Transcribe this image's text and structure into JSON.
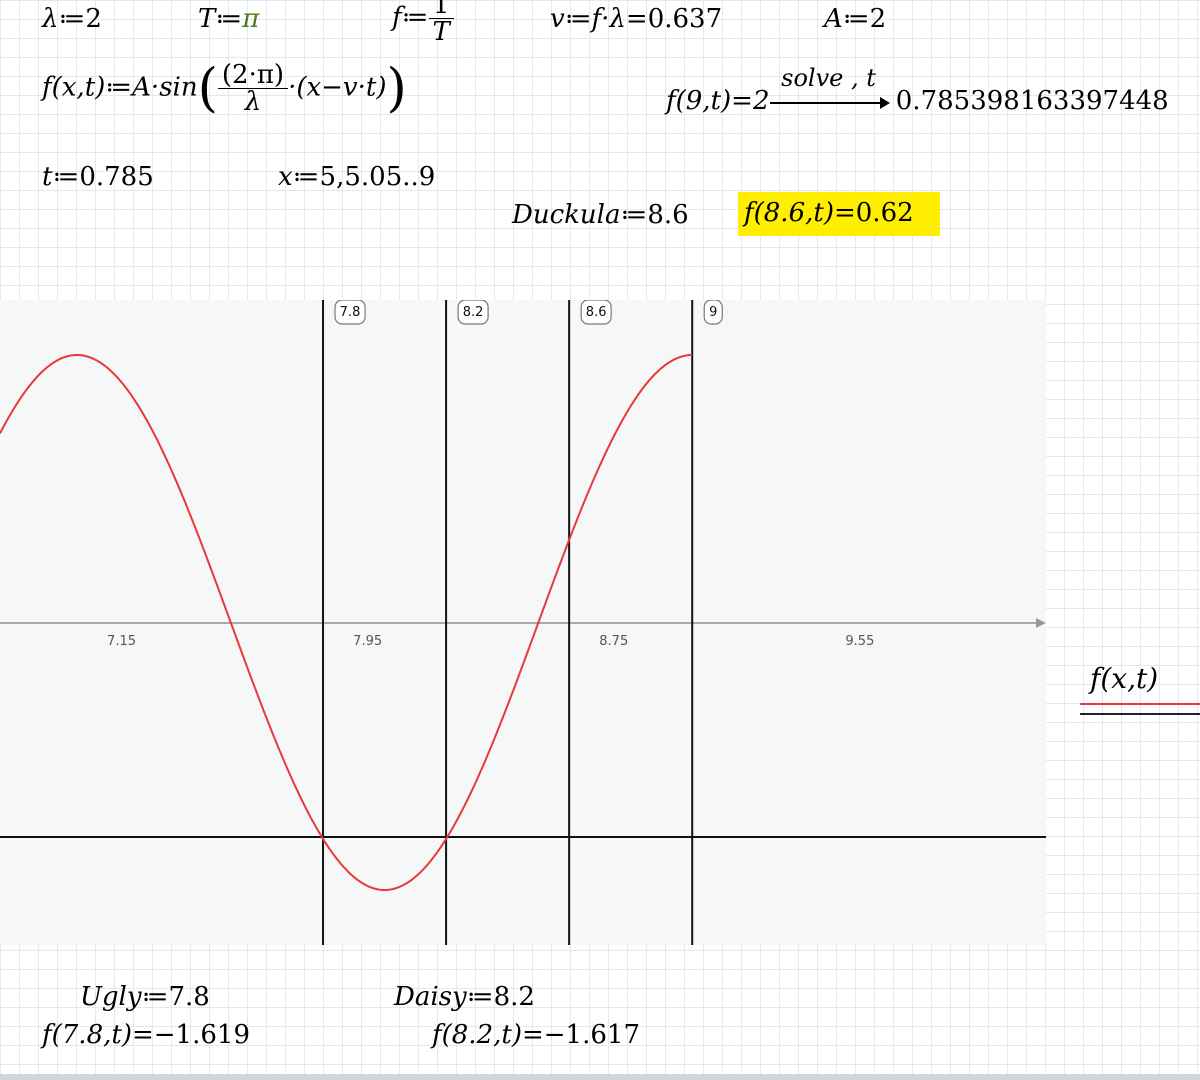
{
  "definitions": {
    "lambda_def": {
      "name": "λ",
      "op": "≔",
      "value": "2"
    },
    "T_def": {
      "name": "T",
      "op": "≔",
      "value": "π"
    },
    "f_def": {
      "name": "f",
      "op": "≔",
      "numerator": "1",
      "denominator": "T"
    },
    "v_def": {
      "expr": "v≔f·λ",
      "result": "=0.637"
    },
    "A_def": {
      "name": "A",
      "op": "≔",
      "value": "2"
    },
    "wave_def": {
      "lhs": "f(x,t)≔A·sin",
      "numerator": "(2·π)",
      "denominator": "λ",
      "tail": "·(x−v·t)"
    },
    "solve_expr": {
      "lhs": "f(9,t)=2",
      "keyword": "solve , t",
      "result": "0.785398163397448"
    },
    "t_def": {
      "name": "t",
      "op": "≔",
      "value": "0.785"
    },
    "x_range": {
      "name": "x",
      "op": "≔",
      "value": "5,5.05..9"
    },
    "duckula_def": {
      "name": "Duckula",
      "op": "≔",
      "value": "8.6"
    },
    "duckula_eval": {
      "expr": "f(8.6,t)",
      "result": "=0.62"
    },
    "ugly_def": {
      "name": "Ugly",
      "op": "≔",
      "value": "7.8"
    },
    "ugly_eval": {
      "expr": "f(7.8,t)",
      "result": "=−1.619"
    },
    "daisy_def": {
      "name": "Daisy",
      "op": "≔",
      "value": "8.2"
    },
    "daisy_eval": {
      "expr": "f(8.2,t)",
      "result": "=−1.617"
    }
  },
  "chart_data": {
    "type": "line",
    "series": [
      {
        "name": "f(x,t)",
        "color": "#e8383d",
        "function": "2*sin(pi*(x-0.637*0.785))",
        "x_start": 6.75,
        "x_end": 9.0
      }
    ],
    "x_ticks": [
      "7.15",
      "7.95",
      "8.75",
      "9.55"
    ],
    "x_tick_values": [
      7.15,
      7.95,
      8.75,
      9.55
    ],
    "xlim": [
      6.75,
      10.15
    ],
    "ylim": [
      -2.0,
      2.0
    ],
    "markers": [
      {
        "label": "7.8",
        "value": 7.8
      },
      {
        "label": "8.2",
        "value": 8.2
      },
      {
        "label": "8.6",
        "value": 8.6
      },
      {
        "label": "9",
        "value": 9.0
      }
    ],
    "legend": {
      "label": "f(x,t)",
      "placement": "right"
    }
  }
}
